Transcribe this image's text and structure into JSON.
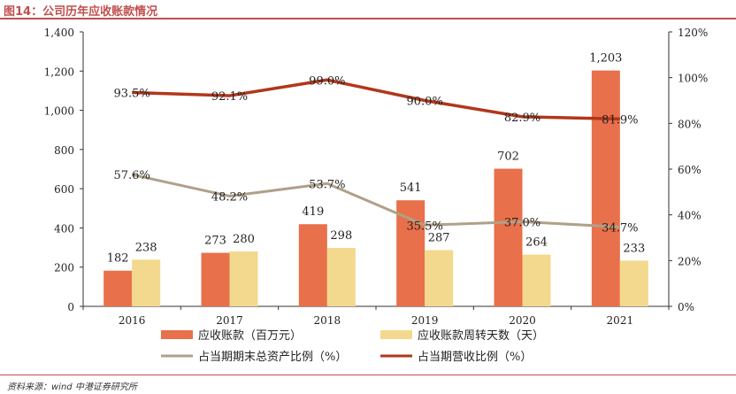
{
  "title": "图14：公司历年应收账款情况",
  "source": "资料来源：wind 中港证券研究所",
  "chart_data": {
    "type": "bar",
    "categories": [
      "2016",
      "2017",
      "2018",
      "2019",
      "2020",
      "2021"
    ],
    "ylim_left": [
      0,
      1400
    ],
    "yticks_left": [
      "0",
      "200",
      "400",
      "600",
      "800",
      "1,000",
      "1,200",
      "1,400"
    ],
    "ylim_right": [
      0,
      120
    ],
    "yticks_right": [
      "0%",
      "20%",
      "40%",
      "60%",
      "80%",
      "100%",
      "120%"
    ],
    "series": [
      {
        "name": "应收账款（百万元）",
        "type": "bar",
        "axis": "left",
        "color": "#e8704a",
        "values": [
          182,
          273,
          419,
          541,
          702,
          1203
        ],
        "labels": [
          "182",
          "273",
          "419",
          "541",
          "702",
          "1,203"
        ]
      },
      {
        "name": "应收账款周转天数（天）",
        "type": "bar",
        "axis": "left",
        "color": "#f3d98d",
        "values": [
          238,
          280,
          298,
          287,
          264,
          233
        ],
        "labels": [
          "238",
          "280",
          "298",
          "287",
          "264",
          "233"
        ]
      },
      {
        "name": "占当期期末总资产比例（%）",
        "type": "line",
        "axis": "right",
        "color": "#b0a089",
        "values": [
          57.6,
          48.2,
          53.7,
          35.5,
          37.0,
          34.7
        ],
        "labels": [
          "57.6%",
          "48.2%",
          "53.7%",
          "35.5%",
          "37.0%",
          "34.7%"
        ]
      },
      {
        "name": "占当期营收比例（%）",
        "type": "line",
        "axis": "right",
        "color": "#b1371a",
        "values": [
          93.5,
          92.1,
          99.0,
          90.0,
          82.9,
          81.9
        ],
        "labels": [
          "93.5%",
          "92.1%",
          "99.0%",
          "90.0%",
          "82.9%",
          "81.9%"
        ]
      }
    ]
  }
}
